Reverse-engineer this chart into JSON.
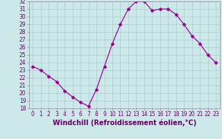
{
  "x": [
    0,
    1,
    2,
    3,
    4,
    5,
    6,
    7,
    8,
    9,
    10,
    11,
    12,
    13,
    14,
    15,
    16,
    17,
    18,
    19,
    20,
    21,
    22,
    23
  ],
  "y": [
    23.5,
    23.0,
    22.2,
    21.5,
    20.3,
    19.5,
    18.8,
    18.3,
    20.5,
    23.5,
    26.5,
    29.0,
    31.0,
    32.0,
    32.0,
    30.8,
    31.0,
    31.0,
    30.3,
    29.0,
    27.5,
    26.5,
    25.0,
    24.0
  ],
  "line_color": "#990099",
  "marker": "D",
  "marker_size": 2.5,
  "bg_color": "#cce8e8",
  "grid_color": "#aacccc",
  "xlabel": "Windchill (Refroidissement éolien,°C)",
  "ylim": [
    18,
    32
  ],
  "xlim_min": -0.5,
  "xlim_max": 23.5,
  "yticks": [
    18,
    19,
    20,
    21,
    22,
    23,
    24,
    25,
    26,
    27,
    28,
    29,
    30,
    31,
    32
  ],
  "xticks": [
    0,
    1,
    2,
    3,
    4,
    5,
    6,
    7,
    8,
    9,
    10,
    11,
    12,
    13,
    14,
    15,
    16,
    17,
    18,
    19,
    20,
    21,
    22,
    23
  ],
  "tick_fontsize": 5.5,
  "xlabel_fontsize": 7.0
}
